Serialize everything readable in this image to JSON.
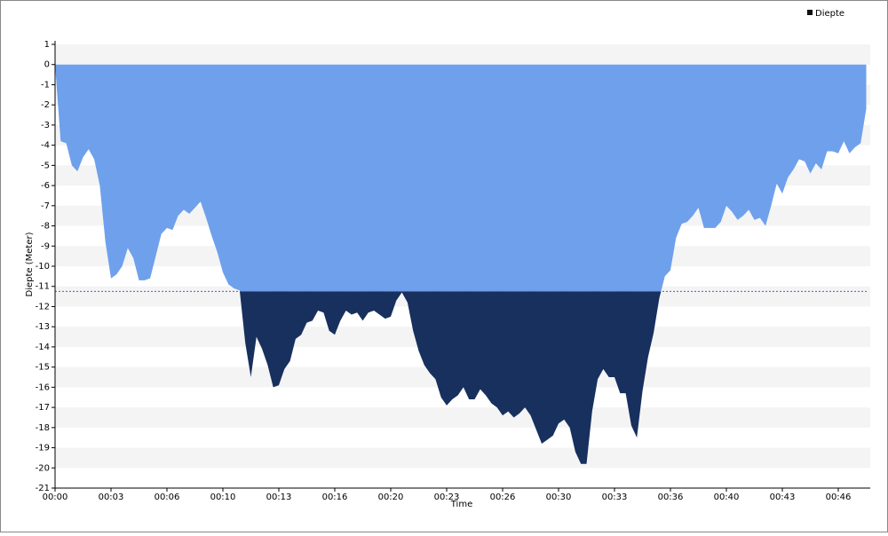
{
  "chart_data": {
    "type": "area",
    "ylabel": "Diepte (Meter)",
    "xlabel": "Time",
    "x": [
      0,
      20,
      40,
      60,
      80,
      100,
      120,
      140,
      160,
      180,
      200,
      220,
      240,
      260,
      280,
      300,
      320,
      340,
      360,
      380,
      400,
      420,
      440,
      460,
      480,
      500,
      520,
      540,
      560,
      580,
      600,
      620,
      640,
      660,
      680,
      700,
      720,
      740,
      760,
      780,
      800,
      820,
      840,
      860,
      880,
      900,
      920,
      940,
      960,
      980,
      1000,
      1020,
      1040,
      1060,
      1080,
      1100,
      1120,
      1140,
      1160,
      1180,
      1200,
      1220,
      1240,
      1260,
      1280,
      1300,
      1320,
      1340,
      1360,
      1380,
      1400,
      1420,
      1440,
      1460,
      1480,
      1500,
      1520,
      1540,
      1560,
      1580,
      1600,
      1620,
      1640,
      1660,
      1680,
      1700,
      1720,
      1740,
      1760,
      1780,
      1800,
      1820,
      1840,
      1860,
      1880,
      1900,
      1920,
      1940,
      1960,
      1980,
      2000,
      2020,
      2040,
      2060,
      2080,
      2100,
      2120,
      2140,
      2160,
      2180,
      2200,
      2220,
      2240,
      2260,
      2280,
      2300,
      2320,
      2340,
      2360,
      2380,
      2400,
      2420,
      2440,
      2460,
      2480,
      2500,
      2520,
      2540,
      2560,
      2580,
      2600,
      2620,
      2640,
      2660,
      2680,
      2700,
      2720,
      2740,
      2760,
      2780,
      2800,
      2820,
      2840,
      2860,
      2880,
      2900
    ],
    "series": [
      {
        "name": "Diepte",
        "color": "#6fa0ec",
        "below_color": "#17305e",
        "legend_color": "#111111",
        "values": [
          0,
          -3.8,
          -3.9,
          -5.0,
          -5.3,
          -4.6,
          -4.2,
          -4.7,
          -6.0,
          -8.8,
          -10.6,
          -10.4,
          -10.0,
          -9.1,
          -9.6,
          -10.7,
          -10.7,
          -10.6,
          -9.5,
          -8.4,
          -8.1,
          -8.2,
          -7.5,
          -7.2,
          -7.4,
          -7.1,
          -6.8,
          -7.6,
          -8.5,
          -9.3,
          -10.3,
          -10.9,
          -11.1,
          -11.2,
          -13.8,
          -15.5,
          -13.5,
          -14.1,
          -14.9,
          -16.0,
          -15.9,
          -15.1,
          -14.7,
          -13.6,
          -13.4,
          -12.8,
          -12.7,
          -12.2,
          -12.3,
          -13.2,
          -13.4,
          -12.7,
          -12.2,
          -12.4,
          -12.3,
          -12.7,
          -12.3,
          -12.2,
          -12.4,
          -12.6,
          -12.5,
          -11.7,
          -11.3,
          -11.8,
          -13.2,
          -14.2,
          -14.9,
          -15.3,
          -15.6,
          -16.5,
          -16.9,
          -16.6,
          -16.4,
          -16.0,
          -16.6,
          -16.6,
          -16.1,
          -16.4,
          -16.8,
          -17.0,
          -17.4,
          -17.2,
          -17.5,
          -17.3,
          -17.0,
          -17.4,
          -18.1,
          -18.8,
          -18.6,
          -18.4,
          -17.8,
          -17.6,
          -18.0,
          -19.2,
          -19.8,
          -19.8,
          -17.2,
          -15.6,
          -15.1,
          -15.5,
          -15.5,
          -16.3,
          -16.3,
          -17.9,
          -18.5,
          -16.2,
          -14.5,
          -13.3,
          -11.6,
          -10.5,
          -10.2,
          -8.6,
          -7.9,
          -7.8,
          -7.5,
          -7.1,
          -8.1,
          -8.1,
          -8.1,
          -7.8,
          -7.0,
          -7.3,
          -7.7,
          -7.5,
          -7.2,
          -7.7,
          -7.6,
          -8.0,
          -7.0,
          -5.9,
          -6.4,
          -5.6,
          -5.2,
          -4.7,
          -4.8,
          -5.4,
          -4.9,
          -5.2,
          -4.3,
          -4.3,
          -4.4,
          -3.8,
          -4.4,
          -4.1,
          -3.9,
          -2.2
        ]
      }
    ],
    "threshold": -11.25,
    "threshold_color": "#5555dd",
    "xlim": [
      0,
      2900
    ],
    "xticks": [
      {
        "value": 0,
        "label": "00:00"
      },
      {
        "value": 200,
        "label": "00:03"
      },
      {
        "value": 400,
        "label": "00:06"
      },
      {
        "value": 600,
        "label": "00:10"
      },
      {
        "value": 800,
        "label": "00:13"
      },
      {
        "value": 1000,
        "label": "00:16"
      },
      {
        "value": 1200,
        "label": "00:20"
      },
      {
        "value": 1400,
        "label": "00:23"
      },
      {
        "value": 1600,
        "label": "00:26"
      },
      {
        "value": 1800,
        "label": "00:30"
      },
      {
        "value": 2000,
        "label": "00:33"
      },
      {
        "value": 2200,
        "label": "00:36"
      },
      {
        "value": 2400,
        "label": "00:40"
      },
      {
        "value": 2600,
        "label": "00:43"
      },
      {
        "value": 2800,
        "label": "00:46"
      }
    ],
    "ylim": [
      -21,
      1
    ],
    "yticks": [
      1,
      0,
      -1,
      -2,
      -3,
      -4,
      -5,
      -6,
      -7,
      -8,
      -9,
      -10,
      -11,
      -12,
      -13,
      -14,
      -15,
      -16,
      -17,
      -18,
      -19,
      -20,
      -21
    ],
    "grid": true,
    "legend": "top-right"
  }
}
